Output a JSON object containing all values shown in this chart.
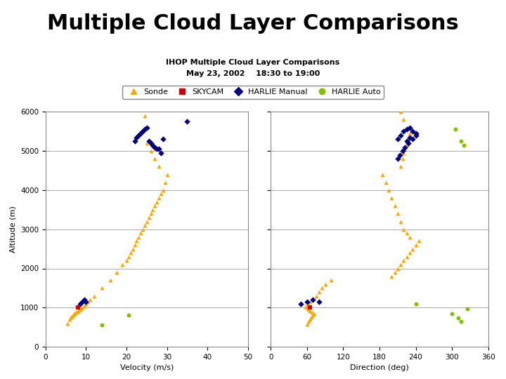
{
  "title": "Multiple Cloud Layer Comparisons",
  "subtitle1": "IHOP Multiple Cloud Layer Comparisons",
  "subtitle2": "May 23, 2002    18:30 to 19:00",
  "title_fontsize": 22,
  "subtitle_fontsize": 8,
  "xlabel_left": "Velocity (m/s)",
  "xlabel_right": "Direction (deg)",
  "ylabel": "Altitude (m)",
  "xlim_left": [
    0,
    50
  ],
  "xlim_right": [
    0,
    360
  ],
  "ylim": [
    0,
    6000
  ],
  "yticks": [
    0,
    1000,
    2000,
    3000,
    4000,
    5000,
    6000
  ],
  "xticks_left": [
    0,
    10,
    20,
    30,
    40,
    50
  ],
  "xticks_right": [
    0,
    60,
    120,
    180,
    240,
    300,
    360
  ],
  "background_color": "#ffffff",
  "grid_color": "#aaaaaa",
  "sonde_color": "#FFA500",
  "skycam_color": "#CC0000",
  "harlie_manual_color": "#000080",
  "harlie_auto_color": "#80C000",
  "sonde_vel": [
    5.5,
    6.0,
    6.2,
    6.5,
    6.8,
    7.0,
    7.2,
    7.5,
    7.8,
    8.0,
    8.2,
    8.5,
    8.8,
    9.0,
    9.5,
    10.0,
    10.5,
    11.0,
    12.0,
    14.0,
    16.0,
    17.5,
    19.0,
    20.0,
    20.5,
    21.0,
    21.5,
    22.0,
    22.5,
    23.0,
    23.5,
    24.0,
    24.5,
    25.0,
    25.5,
    26.0,
    26.5,
    27.0,
    27.5,
    28.0,
    28.5,
    29.0,
    29.5,
    30.0,
    28.0,
    27.0,
    26.0,
    25.0,
    24.0,
    24.5
  ],
  "sonde_alt": [
    600,
    700,
    750,
    780,
    800,
    830,
    860,
    880,
    900,
    920,
    940,
    960,
    980,
    1000,
    1050,
    1100,
    1150,
    1200,
    1300,
    1500,
    1700,
    1900,
    2100,
    2200,
    2300,
    2400,
    2500,
    2600,
    2700,
    2800,
    2900,
    3000,
    3100,
    3200,
    3300,
    3400,
    3500,
    3600,
    3700,
    3800,
    3900,
    4000,
    4200,
    4400,
    4600,
    4800,
    5000,
    5200,
    5500,
    5900
  ],
  "skycam_vel": [
    8.0
  ],
  "skycam_alt_vel": [
    1000
  ],
  "harlie_manual_vel": [
    8.5,
    9.0,
    9.5,
    10.0,
    22.0,
    22.5,
    23.0,
    23.5,
    24.0,
    24.5,
    25.0,
    25.5,
    26.0,
    26.5,
    27.0,
    27.5,
    28.0,
    28.5,
    29.0,
    35.0
  ],
  "harlie_manual_alt_vel": [
    1100,
    1150,
    1200,
    1150,
    5250,
    5350,
    5400,
    5450,
    5500,
    5550,
    5600,
    5250,
    5200,
    5150,
    5100,
    5050,
    5050,
    4950,
    5300,
    5750
  ],
  "harlie_auto_vel": [
    14.0,
    20.5
  ],
  "harlie_auto_alt_vel": [
    550,
    800
  ],
  "sonde_dir": [
    60,
    62,
    65,
    67,
    70,
    72,
    68,
    65,
    63,
    60,
    58,
    60,
    62,
    65,
    70,
    75,
    80,
    85,
    90,
    100,
    200,
    205,
    210,
    215,
    220,
    225,
    230,
    235,
    240,
    245,
    230,
    225,
    220,
    215,
    210,
    205,
    200,
    195,
    190,
    185,
    215,
    218,
    220,
    222,
    225,
    228,
    230,
    232,
    220,
    215
  ],
  "sonde_alt_dir": [
    580,
    650,
    700,
    750,
    800,
    840,
    880,
    920,
    960,
    990,
    1020,
    1060,
    1100,
    1150,
    1200,
    1300,
    1400,
    1500,
    1600,
    1700,
    1800,
    1900,
    2000,
    2100,
    2200,
    2300,
    2400,
    2500,
    2600,
    2700,
    2800,
    2900,
    3000,
    3200,
    3400,
    3600,
    3800,
    4000,
    4200,
    4400,
    4600,
    4800,
    4950,
    5050,
    5150,
    5300,
    5450,
    5600,
    5800,
    6000
  ],
  "skycam_dir": [
    65.0
  ],
  "skycam_alt_dir": [
    1010
  ],
  "harlie_manual_dir": [
    50,
    60,
    70,
    80,
    210,
    215,
    220,
    225,
    230,
    235,
    240,
    240,
    235,
    228,
    222,
    218,
    214,
    210,
    225,
    230
  ],
  "harlie_manual_alt_dir": [
    1100,
    1150,
    1200,
    1150,
    5300,
    5400,
    5500,
    5550,
    5600,
    5500,
    5450,
    5400,
    5300,
    5200,
    5100,
    5000,
    4900,
    4800,
    5250,
    5350
  ],
  "harlie_auto_dir": [
    240,
    305,
    315,
    320,
    325
  ],
  "harlie_auto_alt_dir": [
    1100,
    5550,
    5250,
    5150,
    970
  ],
  "harlie_auto_dir2": [
    300,
    310,
    315
  ],
  "harlie_auto_alt_dir2": [
    840,
    740,
    640
  ]
}
